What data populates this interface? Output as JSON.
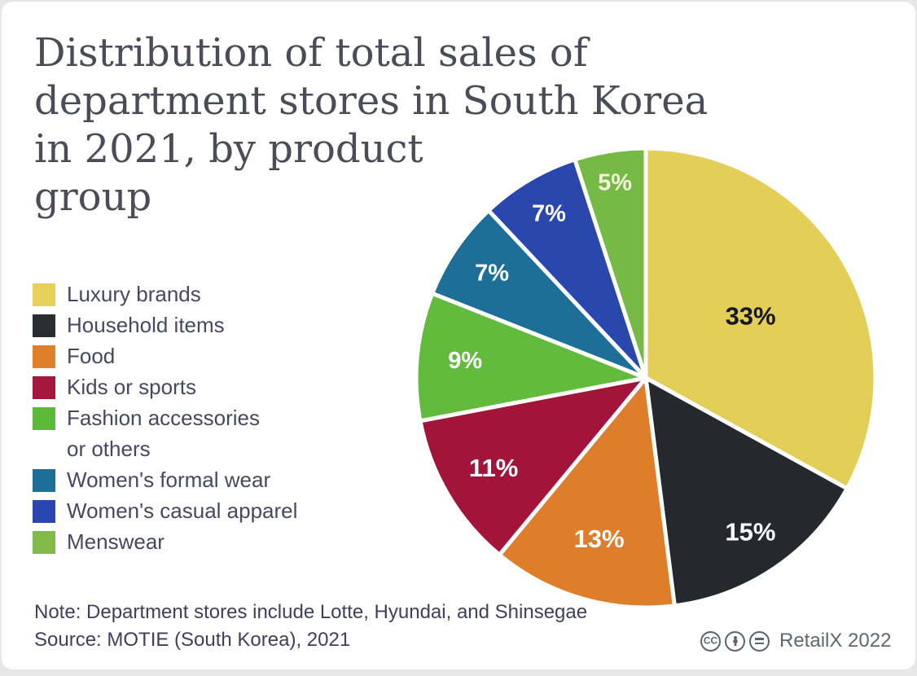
{
  "header": {
    "title_lines": [
      "Distribution of total sales of",
      "department stores in South Korea",
      "in 2021, by product",
      "group"
    ]
  },
  "legend": {
    "items": [
      {
        "label": "Luxury brands",
        "color": "#e6d158"
      },
      {
        "label": "Household items",
        "color": "#2a2d32"
      },
      {
        "label": "Food",
        "color": "#de7f2c"
      },
      {
        "label": "Kids or sports",
        "color": "#a6173e"
      },
      {
        "label": "Fashion accessories\nor others",
        "color": "#5cb93a"
      },
      {
        "label": "Women's formal wear",
        "color": "#1d6f97"
      },
      {
        "label": "Women's casual apparel",
        "color": "#2a46b0"
      },
      {
        "label": "Menswear",
        "color": "#82bb4a"
      }
    ]
  },
  "chart_data": {
    "type": "pie",
    "title": "Distribution of total sales of department stores in South Korea in 2021, by product group",
    "start_angle_deg": 0,
    "direction": "clockwise",
    "gap_color": "#ffffff",
    "slices": [
      {
        "label": "Luxury brands",
        "value": 33,
        "color": "#e3cf57",
        "pct_label": "33%",
        "pct_color": "#15161a",
        "label_r": 0.53,
        "label_size": 31
      },
      {
        "label": "Household items",
        "value": 15,
        "color": "#25282d",
        "pct_label": "15%",
        "pct_color": "#ffffff",
        "label_r": 0.81,
        "label_size": 31
      },
      {
        "label": "Food",
        "value": 13,
        "color": "#de7e2b",
        "pct_label": "13%",
        "pct_color": "#ffffff",
        "label_r": 0.73,
        "label_size": 31
      },
      {
        "label": "Kids or sports",
        "value": 11,
        "color": "#a2143a",
        "pct_label": "11%",
        "pct_color": "#ffffff",
        "label_r": 0.77,
        "label_size": 31
      },
      {
        "label": "Fashion accessories or others",
        "value": 9,
        "color": "#63bb3e",
        "pct_label": "9%",
        "pct_color": "#ffffff",
        "label_r": 0.79,
        "label_size": 29
      },
      {
        "label": "Women's formal wear",
        "value": 7,
        "color": "#1d6f97",
        "pct_label": "7%",
        "pct_color": "#ffffff",
        "label_r": 0.81,
        "label_size": 29
      },
      {
        "label": "Women's casual apparel",
        "value": 7,
        "color": "#2a47ae",
        "pct_label": "7%",
        "pct_color": "#ffffff",
        "label_r": 0.83,
        "label_size": 29
      },
      {
        "label": "Menswear",
        "value": 5,
        "color": "#74ba45",
        "pct_label": "5%",
        "pct_color": "#f5f3d9",
        "label_r": 0.86,
        "label_size": 29
      }
    ]
  },
  "footer": {
    "note": "Note: Department stores include Lotte, Hyundai, and Shinsegae",
    "source": "Source: MOTIE (South Korea), 2021",
    "attribution": "RetailX 2022",
    "license_icons": [
      "cc-icon",
      "attribution-person-icon",
      "equals-icon"
    ]
  }
}
